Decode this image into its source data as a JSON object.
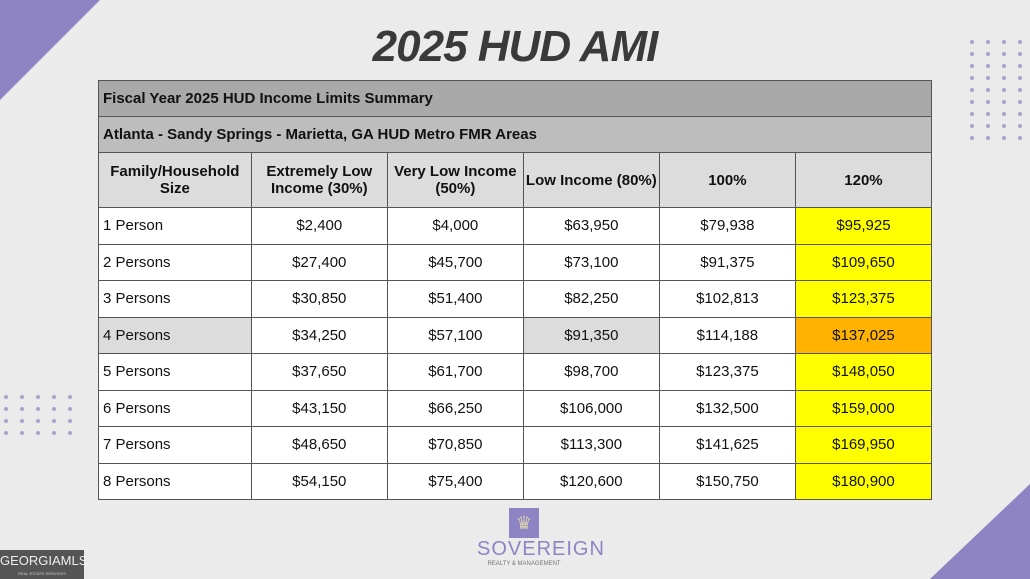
{
  "title": "2025 HUD AMI",
  "table": {
    "title": "Fiscal Year 2025 HUD Income Limits Summary",
    "subtitle": "Atlanta - Sandy Springs - Marietta, GA HUD Metro FMR Areas",
    "headers": [
      "Family/Household Size",
      "Extremely Low Income (30%)",
      "Very Low Income (50%)",
      "Low Income (80%)",
      "100%",
      "120%"
    ],
    "rows": [
      [
        "1 Person",
        "$2,400",
        "$4,000",
        "$63,950",
        "$79,938",
        "$95,925"
      ],
      [
        "2 Persons",
        "$27,400",
        "$45,700",
        "$73,100",
        "$91,375",
        "$109,650"
      ],
      [
        "3 Persons",
        "$30,850",
        "$51,400",
        "$82,250",
        "$102,813",
        "$123,375"
      ],
      [
        "4 Persons",
        "$34,250",
        "$57,100",
        "$91,350",
        "$114,188",
        "$137,025"
      ],
      [
        "5 Persons",
        "$37,650",
        "$61,700",
        "$98,700",
        "$123,375",
        "$148,050"
      ],
      [
        "6 Persons",
        "$43,150",
        "$66,250",
        "$106,000",
        "$132,500",
        "$159,000"
      ],
      [
        "7 Persons",
        "$48,650",
        "$70,850",
        "$113,300",
        "$141,625",
        "$169,950"
      ],
      [
        "8 Persons",
        "$54,150",
        "$75,400",
        "$120,600",
        "$150,750",
        "$180,900"
      ]
    ]
  },
  "colors": {
    "highlight_120": "#ffff00",
    "highlight_4person_120": "#ffb300",
    "accent": "#8f84c3"
  },
  "logos": {
    "sovereign": "SOVEREIGN",
    "sovereign_sub": "REALTY & MANAGEMENT",
    "mls": "GEORGIAMLS",
    "mls_sub": "REAL ESTATE SERVICES"
  }
}
